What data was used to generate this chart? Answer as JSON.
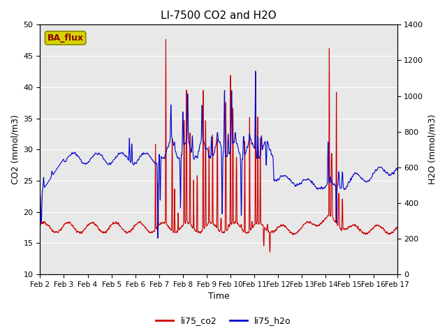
{
  "title": "LI-7500 CO2 and H2O",
  "xlabel": "Time",
  "ylabel_left": "CO2 (mmol/m3)",
  "ylabel_right": "H2O (mmol/m3)",
  "ylim_left": [
    10,
    50
  ],
  "ylim_right": [
    0,
    1400
  ],
  "yticks_left": [
    10,
    15,
    20,
    25,
    30,
    35,
    40,
    45,
    50
  ],
  "yticks_right": [
    0,
    200,
    400,
    600,
    800,
    1000,
    1200,
    1400
  ],
  "xtick_labels": [
    "Feb 2",
    "Feb 3",
    "Feb 4",
    "Feb 5",
    "Feb 6",
    "Feb 7",
    "Feb 8",
    "Feb 9",
    "Feb 10",
    "Feb 11",
    "Feb 12",
    "Feb 13",
    "Feb 14",
    "Feb 15",
    "Feb 16",
    "Feb 17"
  ],
  "color_co2": "#cc0000",
  "color_h2o": "#0000cc",
  "legend_labels": [
    "li75_co2",
    "li75_h2o"
  ],
  "badge_text": "BA_flux",
  "badge_bg": "#d4d400",
  "badge_border": "#888800",
  "badge_text_color": "#8B0000",
  "bg_color": "#e8e8e8",
  "fig_bg": "#ffffff",
  "linewidth": 0.8,
  "grid_color": "#ffffff",
  "grid_linewidth": 0.8
}
